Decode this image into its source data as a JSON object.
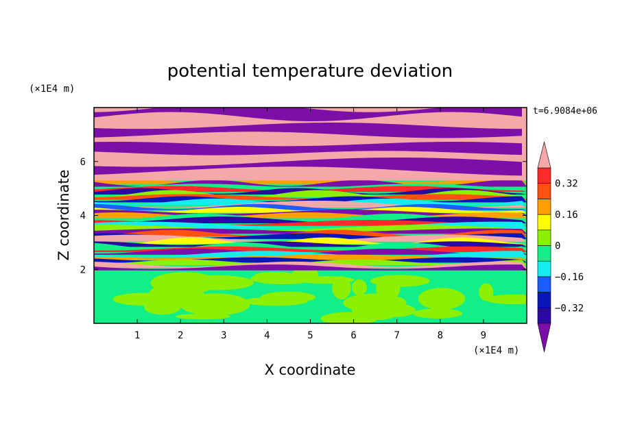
{
  "chart_data": {
    "type": "heatmap",
    "title": "potential temperature deviation",
    "xlabel": "X coordinate",
    "ylabel": "Z coordinate",
    "x_unit": "(×1E4 m)",
    "y_unit": "(×1E4 m)",
    "xlim": [
      0,
      10
    ],
    "ylim": [
      0,
      8
    ],
    "x_ticks": [
      "1",
      "2",
      "3",
      "4",
      "5",
      "6",
      "7",
      "8",
      "9"
    ],
    "x_tick_values": [
      1,
      2,
      3,
      4,
      5,
      6,
      7,
      8,
      9
    ],
    "y_ticks": [
      "2",
      "4",
      "6"
    ],
    "y_tick_values": [
      2,
      4,
      6
    ],
    "time_annotation": "t=6.9084e+06",
    "colorbar": {
      "levels": [
        -0.4,
        -0.32,
        -0.24,
        -0.16,
        -0.08,
        0,
        0.08,
        0.16,
        0.24,
        0.32,
        0.4
      ],
      "colors": [
        "#7b0fa8",
        "#2a0aa0",
        "#0a16b8",
        "#1f5cff",
        "#14ecf0",
        "#12ee88",
        "#8cf000",
        "#ffff00",
        "#ffa000",
        "#ff5010",
        "#ff2a2a",
        "#f5a8a8"
      ],
      "tick_labels": [
        "0.32",
        "0.16",
        "0",
        "−0.16",
        "−0.32"
      ],
      "tick_values": [
        0.32,
        0.16,
        0,
        -0.16,
        -0.32
      ],
      "extend": "both"
    },
    "bands": [
      {
        "z_from": 0,
        "z_to": 2.0,
        "description_values": [
          -0.04,
          0.04
        ],
        "colors": [
          "#12ee88",
          "#8cf000"
        ]
      },
      {
        "z_from": 2.0,
        "z_to": 5.3,
        "description_values": [
          -0.4,
          0.4
        ],
        "colors": [
          "#7b0fa8",
          "#2a0aa0",
          "#0a16b8",
          "#1f5cff",
          "#14ecf0",
          "#12ee88",
          "#8cf000",
          "#ffff00",
          "#ffa000",
          "#ff5010",
          "#ff2a2a",
          "#f5a8a8"
        ]
      },
      {
        "z_from": 5.3,
        "z_to": 8.0,
        "description_values": [
          -0.4,
          0.4
        ],
        "colors": [
          "#7b0fa8",
          "#f5a8a8"
        ]
      }
    ]
  }
}
